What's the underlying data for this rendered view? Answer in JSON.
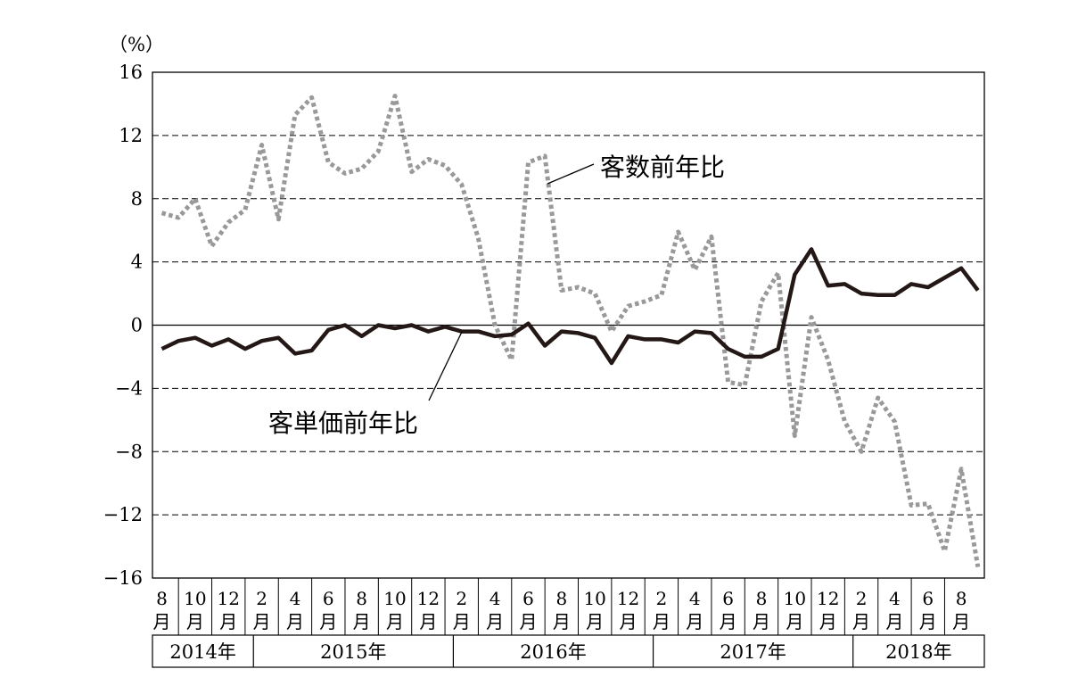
{
  "chart_data": {
    "type": "line",
    "y_unit": "（%）",
    "ylim": [
      -16,
      16
    ],
    "y_ticks": [
      16,
      12,
      8,
      4,
      0,
      -4,
      -8,
      -12,
      -16
    ],
    "y_tick_labels": [
      "16",
      "12",
      "8",
      "4",
      "0",
      "−4",
      "−8",
      "−12",
      "−16"
    ],
    "grid": "horizontal dashed",
    "month_ticks": [
      {
        "i": 0,
        "num": "8",
        "unit": "月"
      },
      {
        "i": 2,
        "num": "10",
        "unit": "月"
      },
      {
        "i": 4,
        "num": "12",
        "unit": "月"
      },
      {
        "i": 6,
        "num": "2",
        "unit": "月"
      },
      {
        "i": 8,
        "num": "4",
        "unit": "月"
      },
      {
        "i": 10,
        "num": "6",
        "unit": "月"
      },
      {
        "i": 12,
        "num": "8",
        "unit": "月"
      },
      {
        "i": 14,
        "num": "10",
        "unit": "月"
      },
      {
        "i": 16,
        "num": "12",
        "unit": "月"
      },
      {
        "i": 18,
        "num": "2",
        "unit": "月"
      },
      {
        "i": 20,
        "num": "4",
        "unit": "月"
      },
      {
        "i": 22,
        "num": "6",
        "unit": "月"
      },
      {
        "i": 24,
        "num": "8",
        "unit": "月"
      },
      {
        "i": 26,
        "num": "10",
        "unit": "月"
      },
      {
        "i": 28,
        "num": "12",
        "unit": "月"
      },
      {
        "i": 30,
        "num": "2",
        "unit": "月"
      },
      {
        "i": 32,
        "num": "4",
        "unit": "月"
      },
      {
        "i": 34,
        "num": "6",
        "unit": "月"
      },
      {
        "i": 36,
        "num": "8",
        "unit": "月"
      },
      {
        "i": 38,
        "num": "10",
        "unit": "月"
      },
      {
        "i": 40,
        "num": "12",
        "unit": "月"
      },
      {
        "i": 42,
        "num": "2",
        "unit": "月"
      },
      {
        "i": 44,
        "num": "4",
        "unit": "月"
      },
      {
        "i": 46,
        "num": "6",
        "unit": "月"
      },
      {
        "i": 48,
        "num": "8",
        "unit": "月"
      }
    ],
    "years": [
      {
        "label": "2014年",
        "start": 0,
        "end": 5
      },
      {
        "label": "2015年",
        "start": 6,
        "end": 17
      },
      {
        "label": "2016年",
        "start": 18,
        "end": 29
      },
      {
        "label": "2017年",
        "start": 30,
        "end": 41
      },
      {
        "label": "2018年",
        "start": 42,
        "end": 48
      }
    ],
    "series": [
      {
        "name": "客数前年比",
        "style": "dotted",
        "color": "#999999",
        "values": [
          7.1,
          6.8,
          8.0,
          5.0,
          6.5,
          7.3,
          11.4,
          6.7,
          13.3,
          14.4,
          10.3,
          9.6,
          9.9,
          11.0,
          14.5,
          9.7,
          10.5,
          10.1,
          8.9,
          5.5,
          0.0,
          -2.2,
          10.3,
          10.7,
          2.2,
          2.4,
          2.0,
          -0.4,
          1.2,
          1.5,
          1.9,
          5.9,
          3.5,
          5.6,
          -3.6,
          -3.8,
          1.5,
          3.3,
          -7.0,
          0.5,
          -2.2,
          -6.1,
          -8.0,
          -4.6,
          -6.1,
          -11.4,
          -11.3,
          -14.3,
          -9.1,
          -15.3
        ]
      },
      {
        "name": "客単価前年比",
        "style": "solid",
        "color": "#231816",
        "values": [
          -1.5,
          -1.0,
          -0.8,
          -1.3,
          -0.9,
          -1.5,
          -1.0,
          -0.8,
          -1.8,
          -1.6,
          -0.3,
          0.0,
          -0.7,
          0.0,
          -0.2,
          0.0,
          -0.4,
          -0.1,
          -0.4,
          -0.4,
          -0.7,
          -0.6,
          0.1,
          -1.3,
          -0.4,
          -0.5,
          -0.8,
          -2.4,
          -0.7,
          -0.9,
          -0.9,
          -1.1,
          -0.4,
          -0.5,
          -1.5,
          -2.0,
          -2.0,
          -1.5,
          3.2,
          4.8,
          2.5,
          2.6,
          2.0,
          1.9,
          1.9,
          2.6,
          2.4,
          3.0,
          3.6,
          2.2
        ]
      }
    ]
  }
}
